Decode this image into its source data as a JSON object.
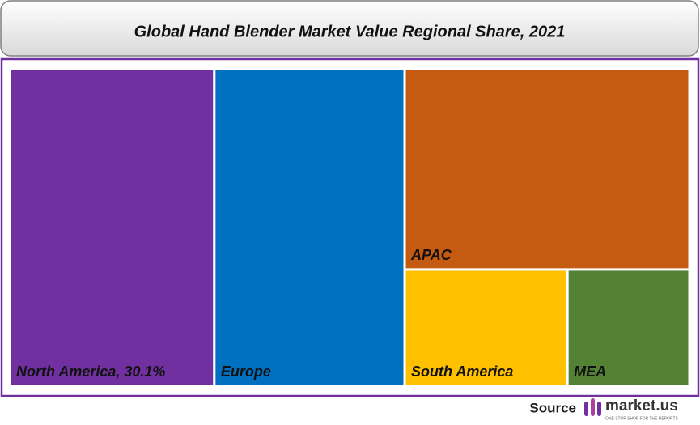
{
  "chart_data": {
    "type": "treemap",
    "title": "Global Hand Blender Market Value Regional Share, 2021",
    "categories": [
      "North America, 30.1%",
      "Europe",
      "APAC",
      "South America",
      "MEA"
    ],
    "values": [
      30.1,
      28.0,
      26.5,
      8.8,
      6.6
    ],
    "colors": [
      "#7030a0",
      "#0070c0",
      "#c55a11",
      "#ffc000",
      "#548235"
    ]
  },
  "source": {
    "label": "Source",
    "brand": "market.us",
    "tagline": "ONE STOP SHOP FOR THE REPORTS"
  }
}
